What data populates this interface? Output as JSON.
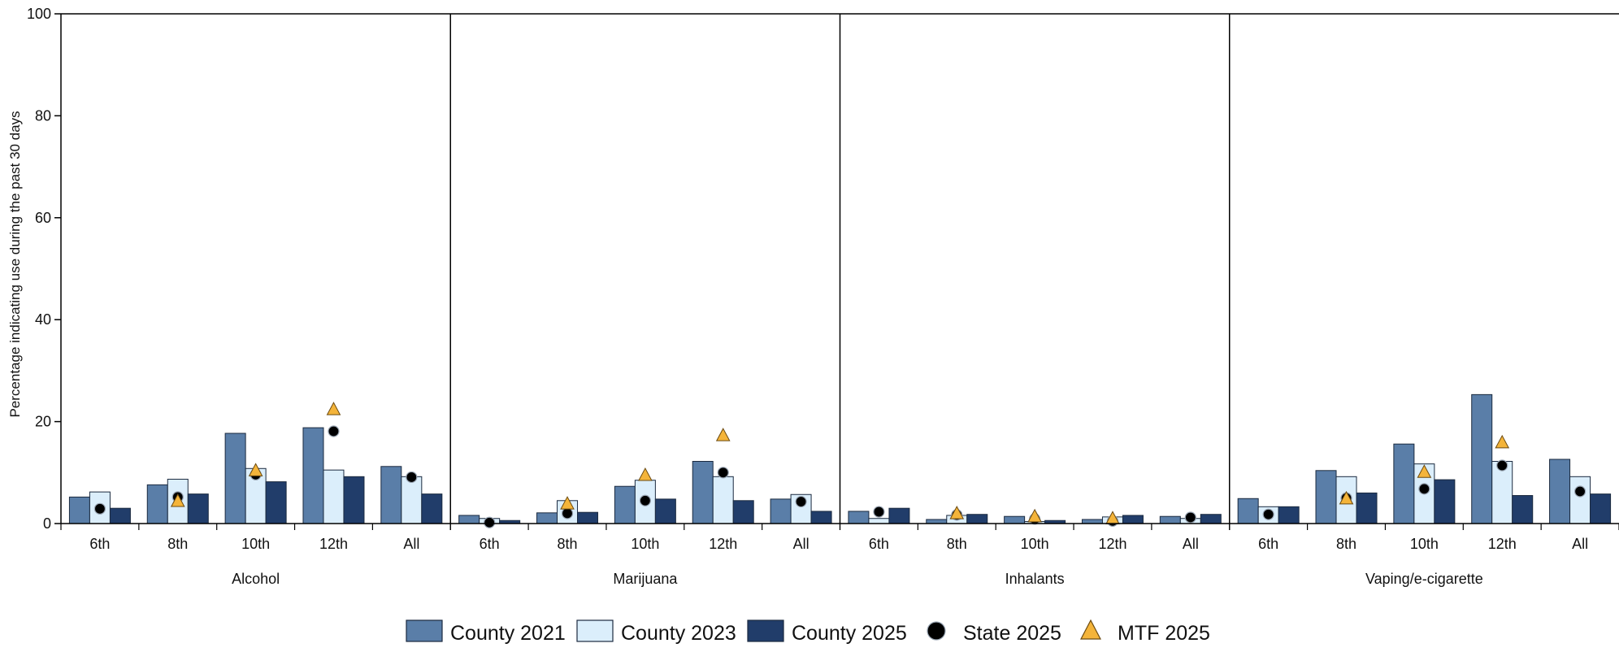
{
  "chart_data": {
    "type": "bar",
    "ylabel": "Percentage indicating use during the past 30 days",
    "ylim": [
      0,
      100
    ],
    "yticks": [
      0,
      20,
      40,
      60,
      80,
      100
    ],
    "grid": false,
    "legend_position": "bottom",
    "grades": [
      "6th",
      "8th",
      "10th",
      "12th",
      "All"
    ],
    "groups": [
      "Alcohol",
      "Marijuana",
      "Inhalants",
      "Vaping/e-cigarette"
    ],
    "series": [
      {
        "name": "County 2021",
        "mark": "bar",
        "color": "#5a7ea8",
        "values": [
          [
            5.2,
            7.6,
            17.7,
            18.8,
            11.2
          ],
          [
            1.6,
            2.1,
            7.3,
            12.2,
            4.8
          ],
          [
            2.4,
            0.8,
            1.4,
            0.8,
            1.4
          ],
          [
            4.9,
            10.4,
            15.6,
            25.3,
            12.6
          ]
        ]
      },
      {
        "name": "County 2023",
        "mark": "bar",
        "color": "#dbeefb",
        "values": [
          [
            6.2,
            8.7,
            10.8,
            10.5,
            9.2
          ],
          [
            1.0,
            4.5,
            8.5,
            9.2,
            5.7
          ],
          [
            1.0,
            1.6,
            0.4,
            1.3,
            1.0
          ],
          [
            3.3,
            9.2,
            11.7,
            12.2,
            9.2
          ]
        ]
      },
      {
        "name": "County 2025",
        "mark": "bar",
        "color": "#213d6a",
        "values": [
          [
            3.0,
            5.8,
            8.2,
            9.2,
            5.8
          ],
          [
            0.6,
            2.2,
            4.8,
            4.5,
            2.4
          ],
          [
            3.0,
            1.8,
            0.6,
            1.6,
            1.8
          ],
          [
            3.3,
            6.0,
            8.6,
            5.5,
            5.8
          ]
        ]
      },
      {
        "name": "State 2025",
        "mark": "dot",
        "color": "#000000",
        "values": [
          [
            2.9,
            5.2,
            9.6,
            18.1,
            9.1
          ],
          [
            0.2,
            2.0,
            4.5,
            10.0,
            4.3
          ],
          [
            2.3,
            1.7,
            0.9,
            0.5,
            1.2
          ],
          [
            1.8,
            5.0,
            6.8,
            11.4,
            6.3
          ]
        ]
      },
      {
        "name": "MTF 2025",
        "mark": "triangle",
        "color": "#f4b43a",
        "values": [
          [
            null,
            4.3,
            10.3,
            22.3,
            null
          ],
          [
            null,
            3.8,
            9.4,
            17.2,
            null
          ],
          [
            null,
            1.9,
            1.3,
            0.9,
            null
          ],
          [
            null,
            4.8,
            10.0,
            15.8,
            null
          ]
        ]
      }
    ]
  }
}
